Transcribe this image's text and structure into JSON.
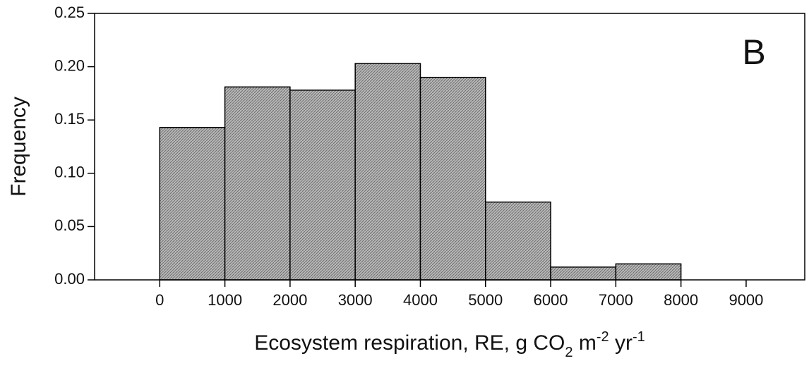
{
  "chart_data": {
    "type": "histogram",
    "annotation": "B",
    "ylabel": "Frequency",
    "xlabel_parts": [
      {
        "text": "Ecosystem respiration, RE, g CO"
      },
      {
        "text": "2",
        "script": "sub"
      },
      {
        "text": " m"
      },
      {
        "text": "-2",
        "script": "super"
      },
      {
        "text": " yr"
      },
      {
        "text": "-1",
        "script": "super"
      }
    ],
    "bins": [
      0,
      1000,
      2000,
      3000,
      4000,
      5000,
      6000,
      7000,
      8000
    ],
    "values": [
      0.143,
      0.181,
      0.178,
      0.203,
      0.19,
      0.073,
      0.012,
      0.015
    ],
    "color": "#a6a6a6",
    "xlim": [
      -1000,
      9900
    ],
    "ylim": [
      0,
      0.25
    ],
    "xticks": [
      0,
      1000,
      2000,
      3000,
      4000,
      5000,
      6000,
      7000,
      8000,
      9000
    ],
    "yticks": [
      {
        "value": 0,
        "label": "0.00"
      },
      0.05,
      {
        "value": 0.1,
        "label": "0.10"
      },
      0.15,
      {
        "value": 0.2,
        "label": "0.20"
      },
      0.25
    ]
  }
}
